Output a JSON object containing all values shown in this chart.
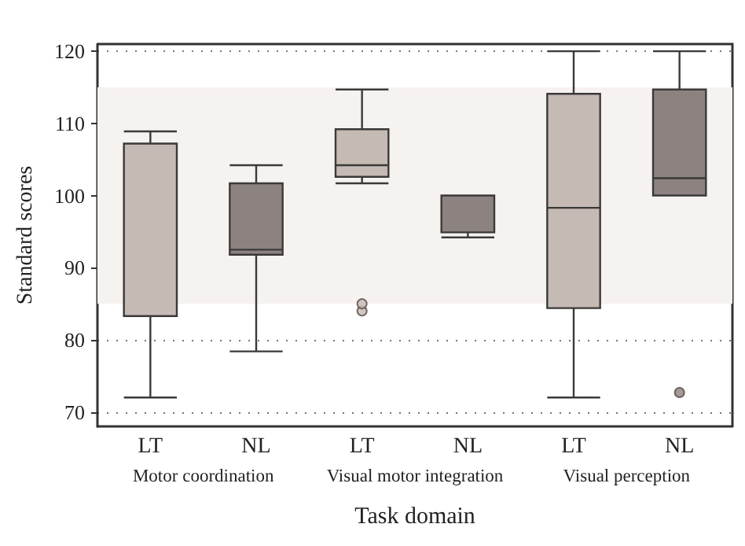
{
  "chart_data": {
    "type": "box",
    "xlabel": "Task domain",
    "ylabel": "Standard scores",
    "categories": [
      "LT",
      "NL",
      "LT",
      "NL",
      "LT",
      "NL"
    ],
    "colors": [
      "#c6bab4",
      "#8c8380",
      "#c6bab4",
      "#8c8380",
      "#c6bab4",
      "#8c8380"
    ],
    "boxes": [
      {
        "low": 72,
        "q1": 83.3,
        "median": 83.3,
        "q3": 107.2,
        "high": 108.9
      },
      {
        "low": 78.4,
        "q1": 91.8,
        "median": 92.5,
        "q3": 101.7,
        "high": 104.2
      },
      {
        "low": 101.7,
        "q1": 102.6,
        "median": 104.2,
        "q3": 109.2,
        "high": 114.7,
        "outliers": [
          84,
          85
        ]
      },
      {
        "low": 94.2,
        "q1": 94.9,
        "median": 94.9,
        "q3": 100,
        "high": 100
      },
      {
        "low": 72,
        "q1": 84.4,
        "median": 98.3,
        "q3": 114.1,
        "high": 120
      },
      {
        "low": 100,
        "q1": 100,
        "median": 102.4,
        "q3": 114.7,
        "high": 120,
        "outliers": [
          72.7
        ]
      }
    ],
    "annotations": [
      "Motor coordination",
      "Visual motor integration",
      "Visual perception"
    ],
    "ylim": [
      68,
      121
    ],
    "yticks": [
      70,
      80,
      90,
      100,
      110,
      120
    ],
    "grid": "y",
    "bands": [
      {
        "axis": "y",
        "from": 85,
        "to": 115,
        "color": "#f6f2f0"
      }
    ]
  }
}
